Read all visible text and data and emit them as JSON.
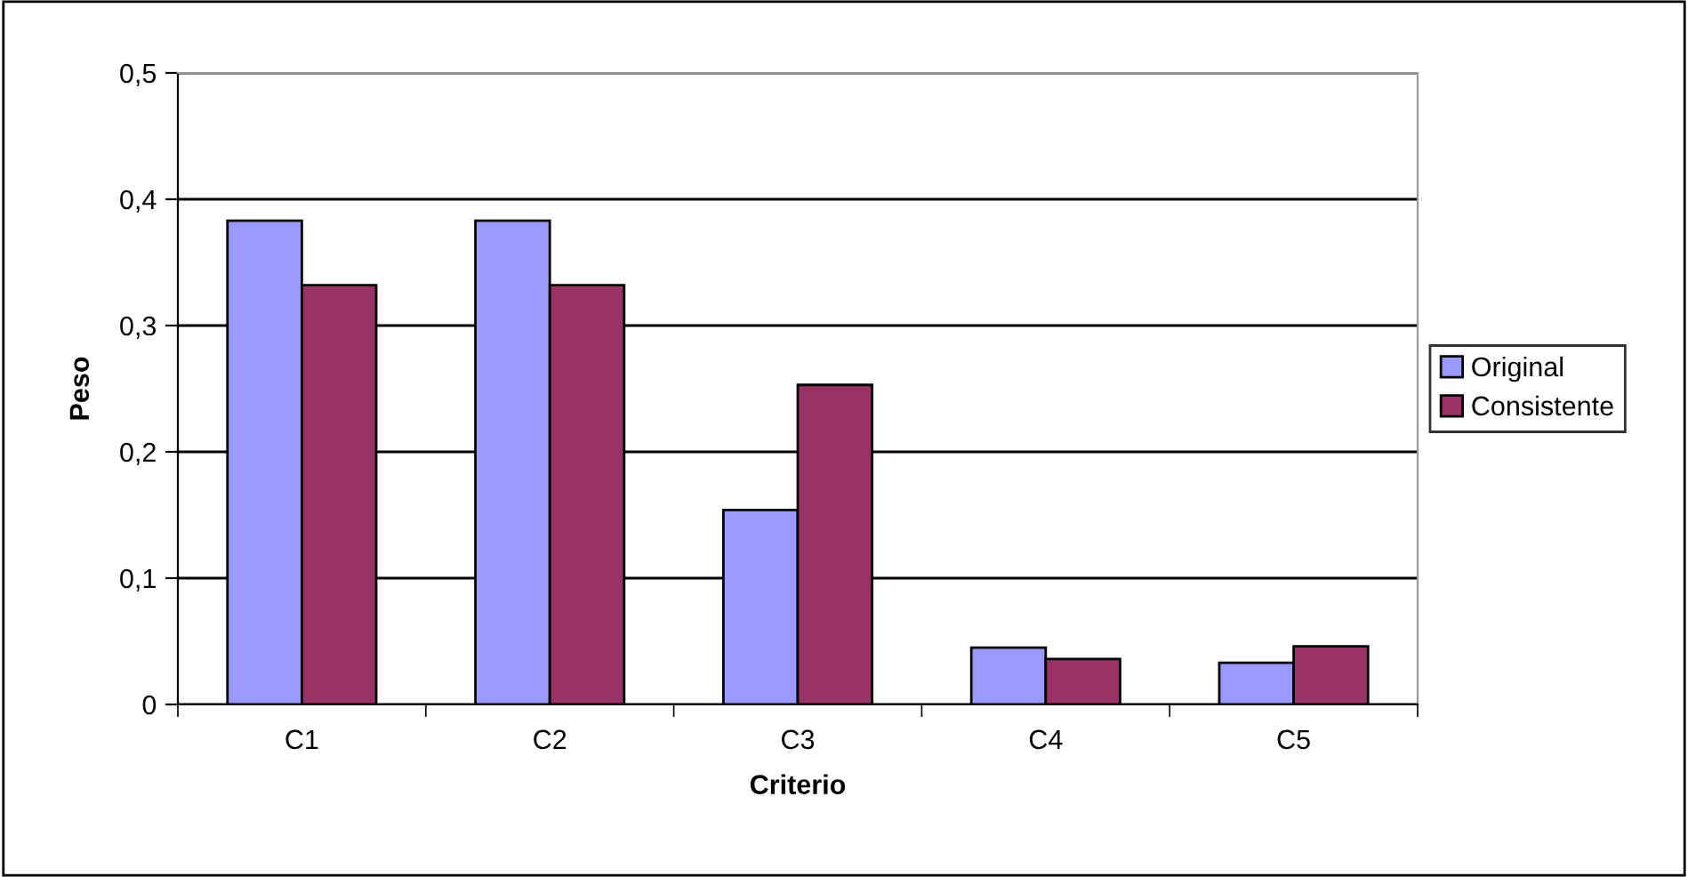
{
  "chart_data": {
    "type": "bar",
    "xlabel": "Criterio",
    "ylabel": "Peso",
    "categories": [
      "C1",
      "C2",
      "C3",
      "C4",
      "C5"
    ],
    "series": [
      {
        "name": "Original",
        "color": "#9999ff",
        "values": [
          0.383,
          0.383,
          0.154,
          0.045,
          0.033
        ]
      },
      {
        "name": "Consistente",
        "color": "#993366",
        "values": [
          0.332,
          0.332,
          0.253,
          0.036,
          0.046
        ]
      }
    ],
    "ylim": [
      0,
      0.5
    ],
    "yticks": [
      {
        "value": 0,
        "label": "0"
      },
      {
        "value": 0.1,
        "label": "0,1"
      },
      {
        "value": 0.2,
        "label": "0,2"
      },
      {
        "value": 0.3,
        "label": "0,3"
      },
      {
        "value": 0.4,
        "label": "0,4"
      },
      {
        "value": 0.5,
        "label": "0,5"
      }
    ],
    "grid": "y",
    "legend": "right"
  }
}
